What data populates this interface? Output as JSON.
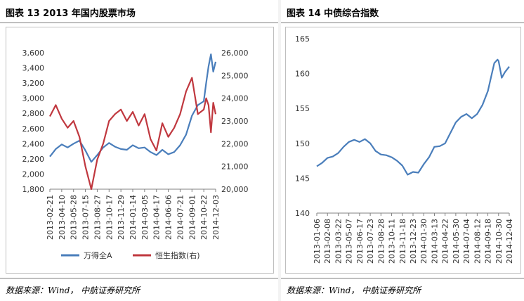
{
  "left_panel": {
    "title": "图表 13 2013 年国内股票市场",
    "source": "数据来源：Wind， 中航证券研究所"
  },
  "right_panel": {
    "title": "图表 14 中债综合指数",
    "source": "数据来源：Wind， 中航证券研究所"
  },
  "colors": {
    "blue": "#4a7ebb",
    "red": "#c0383f",
    "axis": "#808080"
  },
  "chart_data": [
    {
      "type": "line",
      "title": "",
      "x_tick_labels": [
        "2013-02-21",
        "2013-04-10",
        "2013-05-28",
        "2013-07-15",
        "2013-08-27",
        "2013-10-17",
        "2013-11-29",
        "2014-01-14",
        "2014-03-05",
        "2014-04-17",
        "2014-06-06",
        "2014-07-21",
        "2014-09-01",
        "2014-10-22",
        "2014-12-03"
      ],
      "y_left": {
        "ticks": [
          "1,800",
          "2,000",
          "2,200",
          "2,400",
          "2,600",
          "2,800",
          "3,000",
          "3,200",
          "3,400",
          "3,600"
        ],
        "range": [
          1800,
          3600
        ]
      },
      "y_right": {
        "ticks": [
          "20,000",
          "21,000",
          "22,000",
          "23,000",
          "24,000",
          "25,000",
          "26,000"
        ],
        "range": [
          20000,
          26000
        ]
      },
      "legend_position": "bottom",
      "series": [
        {
          "name": "万得全A",
          "axis": "left",
          "color": "#4a7ebb",
          "x": [
            0,
            0.5,
            1,
            1.5,
            2,
            2.5,
            3,
            3.5,
            4,
            4.5,
            5,
            5.5,
            6,
            6.5,
            7,
            7.5,
            8,
            8.5,
            9,
            9.5,
            10,
            10.5,
            11,
            11.5,
            12,
            12.5,
            13,
            13.2,
            13.4,
            13.6,
            13.8,
            14
          ],
          "values": [
            2230,
            2330,
            2390,
            2350,
            2400,
            2440,
            2310,
            2160,
            2250,
            2350,
            2410,
            2360,
            2330,
            2320,
            2380,
            2340,
            2350,
            2290,
            2250,
            2320,
            2260,
            2290,
            2380,
            2520,
            2770,
            2910,
            2960,
            3200,
            3420,
            3580,
            3350,
            3480
          ]
        },
        {
          "name": "恒生指数(右)",
          "axis": "right",
          "color": "#c0383f",
          "x": [
            0,
            0.5,
            1,
            1.5,
            2,
            2.5,
            3,
            3.5,
            4,
            4.5,
            5,
            5.5,
            6,
            6.5,
            7,
            7.5,
            8,
            8.5,
            9,
            9.5,
            10,
            10.5,
            11,
            11.5,
            12,
            12.5,
            13,
            13.2,
            13.4,
            13.6,
            13.8,
            14
          ],
          "values": [
            23200,
            23700,
            23100,
            22700,
            23000,
            22300,
            21000,
            20000,
            21300,
            22000,
            23000,
            23300,
            23500,
            23000,
            23400,
            22800,
            23300,
            22200,
            21700,
            22900,
            22300,
            22700,
            23300,
            24300,
            24900,
            23300,
            23500,
            24000,
            23700,
            22500,
            23800,
            23300
          ]
        }
      ]
    },
    {
      "type": "line",
      "title": "",
      "x_tick_labels": [
        "2013-01-06",
        "2013-02-08",
        "2013-03-22",
        "2013-05-07",
        "2013-06-17",
        "2013-07-23",
        "2013-08-28",
        "2013-10-11",
        "2013-11-18",
        "2013-12-23",
        "2014-01-30",
        "2014-03-13",
        "2014-04-22",
        "2014-05-30",
        "2014-07-04",
        "2014-08-12",
        "2014-09-18",
        "2014-10-30",
        "2014-12-04"
      ],
      "y": {
        "ticks": [
          "140",
          "145",
          "150",
          "155",
          "160",
          "165"
        ],
        "range": [
          140,
          165
        ]
      },
      "legend_position": "none",
      "series": [
        {
          "color": "#4a7ebb",
          "x": [
            0,
            0.5,
            1,
            1.5,
            2,
            2.5,
            3,
            3.5,
            4,
            4.5,
            5,
            5.5,
            6,
            6.5,
            7,
            7.5,
            8,
            8.5,
            9,
            9.5,
            10,
            10.5,
            11,
            11.5,
            12,
            12.5,
            13,
            13.5,
            14,
            14.5,
            15,
            15.5,
            16,
            16.3,
            16.6,
            16.9,
            17,
            17.3,
            17.6,
            18
          ],
          "values": [
            146.7,
            147.2,
            147.9,
            148.1,
            148.6,
            149.5,
            150.2,
            150.5,
            150.2,
            150.6,
            150.0,
            148.9,
            148.4,
            148.3,
            148.0,
            147.5,
            146.8,
            145.5,
            145.9,
            145.8,
            147.0,
            148.0,
            149.5,
            149.6,
            150.0,
            151.5,
            153.0,
            153.8,
            154.2,
            153.6,
            154.2,
            155.5,
            157.5,
            159.5,
            161.5,
            162.0,
            161.8,
            159.4,
            160.2,
            161.0
          ]
        }
      ]
    }
  ]
}
